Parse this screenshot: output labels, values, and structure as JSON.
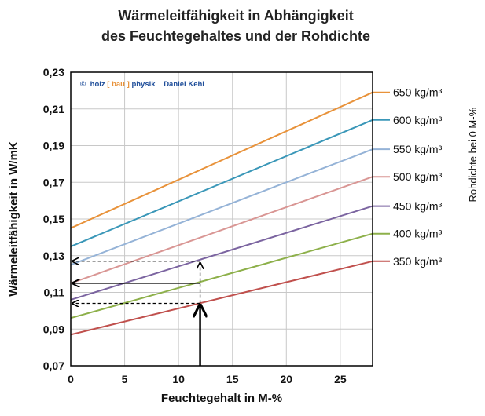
{
  "chart_data": {
    "type": "line",
    "title_lines": [
      "Wärmeleitfähigkeit in Abhängigkeit",
      "des Feuchtegehaltes  und der Rohdichte"
    ],
    "xlabel": "Feuchtegehalt in M-%",
    "ylabel": "Wärmeleitfähigkeit in W/mK",
    "legend_title": "Rohdichte bei 0 M-%",
    "legend_placement": "right",
    "xlim": [
      0,
      28
    ],
    "ylim": [
      0.07,
      0.23
    ],
    "x_ticks": [
      0,
      5,
      10,
      15,
      20,
      25
    ],
    "x_tick_labels": [
      "0",
      "5",
      "10",
      "15",
      "20",
      "25"
    ],
    "y_ticks": [
      0.07,
      0.09,
      0.11,
      0.13,
      0.15,
      0.17,
      0.19,
      0.21,
      0.23
    ],
    "y_tick_labels": [
      "0,07",
      "0,09",
      "0,11",
      "0,13",
      "0,15",
      "0,17",
      "0,19",
      "0,21",
      "0,23"
    ],
    "grid": true,
    "annotation": {
      "copyright": "©",
      "brand_holz": "holz",
      "brand_bracket_open": "[",
      "brand_bau": "bau",
      "brand_bracket_close": "]",
      "brand_physik": "physik",
      "author": "Daniel Kehl"
    },
    "series": [
      {
        "name": "650  kg/m³",
        "color": "#e8923a",
        "x": [
          0,
          28
        ],
        "y": [
          0.145,
          0.219
        ]
      },
      {
        "name": "600  kg/m³",
        "color": "#3a97b8",
        "x": [
          0,
          28
        ],
        "y": [
          0.135,
          0.204
        ]
      },
      {
        "name": "550  kg/m³",
        "color": "#95b3d7",
        "x": [
          0,
          28
        ],
        "y": [
          0.125,
          0.188
        ]
      },
      {
        "name": "500  kg/m³",
        "color": "#d99694",
        "x": [
          0,
          28
        ],
        "y": [
          0.115,
          0.173
        ]
      },
      {
        "name": "450  kg/m³",
        "color": "#7b64a0",
        "x": [
          0,
          28
        ],
        "y": [
          0.106,
          0.157
        ]
      },
      {
        "name": "400  kg/m³",
        "color": "#8db04a",
        "x": [
          0,
          28
        ],
        "y": [
          0.096,
          0.142
        ]
      },
      {
        "name": "350  kg/m³",
        "color": "#c0504d",
        "x": [
          0,
          28
        ],
        "y": [
          0.087,
          0.127
        ]
      }
    ],
    "reading_example": {
      "x_value": 12,
      "y_lower": 0.104,
      "y_middle": 0.115,
      "y_upper": 0.127
    },
    "colors": {
      "grid": "#c8c8c8",
      "frame": "#000000",
      "brand_orange": "#e8923a",
      "brand_blue": "#1f4e9a"
    }
  }
}
